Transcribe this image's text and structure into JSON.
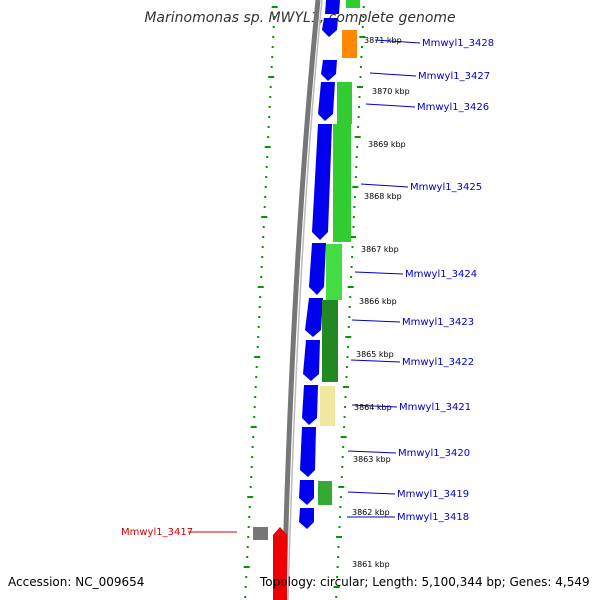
{
  "title": "Marinomonas sp. MWYL1, complete genome",
  "footer": {
    "accession": "Accession: NC_009654",
    "summary": "Topology: circular; Length: 5,100,344 bp; Genes: 4,549"
  },
  "scale_labels": [
    "3871 kbp",
    "3870 kbp",
    "3869 kbp",
    "3868 kbp",
    "3867 kbp",
    "3866 kbp",
    "3865 kbp",
    "3864 kbp",
    "3863 kbp",
    "3862 kbp",
    "3861 kbp"
  ],
  "genes": [
    {
      "label": "Mmwyl1_3428",
      "color": "#0000c8"
    },
    {
      "label": "Mmwyl1_3427",
      "color": "#0000c8"
    },
    {
      "label": "Mmwyl1_3426",
      "color": "#0000c8"
    },
    {
      "label": "Mmwyl1_3425",
      "color": "#0000c8"
    },
    {
      "label": "Mmwyl1_3424",
      "color": "#0000c8"
    },
    {
      "label": "Mmwyl1_3423",
      "color": "#0000c8"
    },
    {
      "label": "Mmwyl1_3422",
      "color": "#0000c8"
    },
    {
      "label": "Mmwyl1_3421",
      "color": "#0000c8"
    },
    {
      "label": "Mmwyl1_3420",
      "color": "#0000c8"
    },
    {
      "label": "Mmwyl1_3419",
      "color": "#0000c8"
    },
    {
      "label": "Mmwyl1_3418",
      "color": "#0000c8"
    },
    {
      "label": "Mmwyl1_3417",
      "color": "#d00000"
    }
  ],
  "colors": {
    "cds": "#0000ee",
    "rna": "#ff0000",
    "cog_green": "#33cc33",
    "cog_dark_green": "#228822",
    "cog_orange": "#ff8800",
    "cog_beige": "#f0e6a0",
    "backbone": "#888888",
    "gc_skew": "#009900"
  }
}
